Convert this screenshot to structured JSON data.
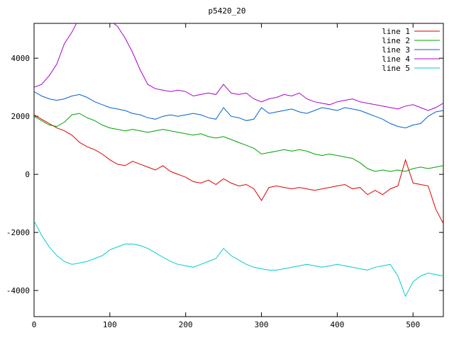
{
  "chart": {
    "title": "p5420_20"
  },
  "chart_data": {
    "type": "line",
    "title": "p5420_20",
    "xlabel": "",
    "ylabel": "",
    "xlim": [
      0,
      540
    ],
    "ylim": [
      -4900,
      5200
    ],
    "xticks": [
      0,
      100,
      200,
      300,
      400,
      500
    ],
    "yticks": [
      -4000,
      -2000,
      0,
      2000,
      4000
    ],
    "grid": false,
    "legend_position": "top-right",
    "background": "#ffffff",
    "border_color": "#000000",
    "x": [
      0,
      10,
      20,
      30,
      40,
      50,
      60,
      70,
      80,
      90,
      100,
      110,
      120,
      130,
      140,
      150,
      160,
      170,
      180,
      190,
      200,
      210,
      220,
      230,
      240,
      250,
      260,
      270,
      280,
      290,
      300,
      310,
      320,
      330,
      340,
      350,
      360,
      370,
      380,
      390,
      400,
      410,
      420,
      430,
      440,
      450,
      460,
      470,
      480,
      490,
      500,
      510,
      520,
      530,
      540
    ],
    "series": [
      {
        "name": "line 1",
        "color": "#dd0000",
        "values": [
          2050,
          1900,
          1750,
          1600,
          1500,
          1350,
          1100,
          950,
          850,
          700,
          500,
          350,
          300,
          450,
          350,
          250,
          150,
          300,
          100,
          0,
          -100,
          -250,
          -300,
          -200,
          -350,
          -150,
          -300,
          -400,
          -350,
          -500,
          -900,
          -450,
          -400,
          -450,
          -500,
          -450,
          -500,
          -550,
          -500,
          -450,
          -400,
          -350,
          -500,
          -450,
          -700,
          -550,
          -700,
          -500,
          -400,
          500,
          -300,
          -350,
          -400,
          -1200,
          -1700
        ]
      },
      {
        "name": "line 2",
        "color": "#00a000",
        "values": [
          2000,
          1850,
          1700,
          1650,
          1800,
          2050,
          2100,
          1950,
          1850,
          1700,
          1600,
          1550,
          1500,
          1550,
          1500,
          1450,
          1500,
          1550,
          1500,
          1450,
          1400,
          1350,
          1400,
          1300,
          1250,
          1300,
          1200,
          1100,
          1000,
          900,
          700,
          750,
          800,
          850,
          800,
          850,
          800,
          700,
          650,
          700,
          650,
          600,
          550,
          400,
          200,
          100,
          150,
          100,
          150,
          100,
          200,
          250,
          200,
          250,
          300
        ]
      },
      {
        "name": "line 3",
        "color": "#0060d0",
        "values": [
          2850,
          2700,
          2600,
          2550,
          2600,
          2700,
          2750,
          2650,
          2500,
          2400,
          2300,
          2250,
          2200,
          2100,
          2050,
          1950,
          1900,
          2000,
          2050,
          2000,
          2050,
          2100,
          2050,
          1950,
          1900,
          2300,
          2000,
          1950,
          1850,
          1900,
          2300,
          2100,
          2150,
          2200,
          2250,
          2150,
          2100,
          2200,
          2300,
          2250,
          2200,
          2300,
          2250,
          2200,
          2100,
          2000,
          1900,
          1750,
          1650,
          1600,
          1700,
          1750,
          2000,
          2150,
          2200
        ]
      },
      {
        "name": "line 4",
        "color": "#aa00cc",
        "values": [
          3000,
          3100,
          3400,
          3800,
          4500,
          4900,
          5400,
          5600,
          5500,
          5600,
          5300,
          5100,
          4700,
          4200,
          3600,
          3100,
          2950,
          2900,
          2850,
          2900,
          2850,
          2700,
          2750,
          2800,
          2750,
          3100,
          2800,
          2750,
          2800,
          2600,
          2500,
          2600,
          2650,
          2750,
          2700,
          2800,
          2600,
          2500,
          2450,
          2400,
          2500,
          2550,
          2600,
          2500,
          2450,
          2400,
          2350,
          2300,
          2250,
          2350,
          2400,
          2300,
          2200,
          2300,
          2450
        ]
      },
      {
        "name": "line 5",
        "color": "#00cccc",
        "values": [
          -1600,
          -2100,
          -2500,
          -2800,
          -3000,
          -3100,
          -3050,
          -3000,
          -2900,
          -2800,
          -2600,
          -2500,
          -2400,
          -2400,
          -2450,
          -2550,
          -2700,
          -2850,
          -3000,
          -3100,
          -3150,
          -3200,
          -3100,
          -3000,
          -2900,
          -2550,
          -2800,
          -2950,
          -3100,
          -3200,
          -3250,
          -3300,
          -3300,
          -3250,
          -3200,
          -3150,
          -3100,
          -3150,
          -3200,
          -3150,
          -3100,
          -3150,
          -3200,
          -3250,
          -3300,
          -3200,
          -3150,
          -3100,
          -3500,
          -4200,
          -3700,
          -3500,
          -3400,
          -3450,
          -3500
        ]
      }
    ]
  }
}
